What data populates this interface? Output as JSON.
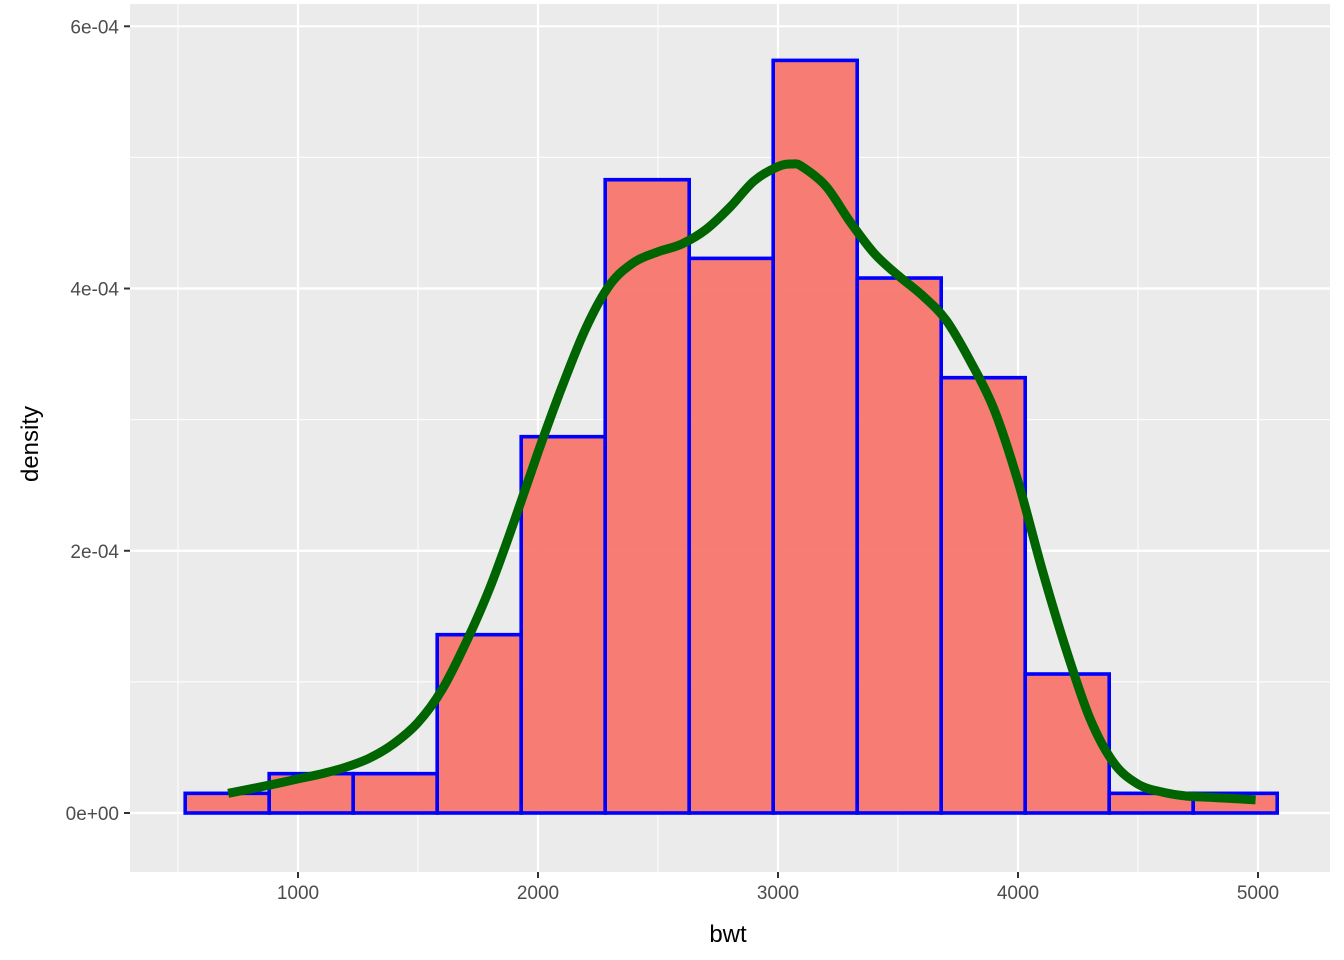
{
  "chart_data": {
    "type": "bar",
    "subtype": "histogram-with-density",
    "xlabel": "bwt",
    "ylabel": "density",
    "xlim": [
      300,
      5300
    ],
    "ylim": [
      -4.5e-05,
      0.000617
    ],
    "x_ticks": [
      {
        "value": 1000,
        "label": "1000"
      },
      {
        "value": 2000,
        "label": "2000"
      },
      {
        "value": 3000,
        "label": "3000"
      },
      {
        "value": 4000,
        "label": "4000"
      },
      {
        "value": 5000,
        "label": "5000"
      }
    ],
    "y_ticks": [
      {
        "value": 0,
        "label": "0e+00"
      },
      {
        "value": 0.0002,
        "label": "2e-04"
      },
      {
        "value": 0.0004,
        "label": "4e-04"
      },
      {
        "value": 0.0006,
        "label": "6e-04"
      }
    ],
    "grid": true,
    "legend": "none",
    "bins": [
      {
        "x0": 530,
        "x1": 880,
        "density": 1.5e-05
      },
      {
        "x0": 880,
        "x1": 1230,
        "density": 3e-05
      },
      {
        "x0": 1230,
        "x1": 1580,
        "density": 3e-05
      },
      {
        "x0": 1580,
        "x1": 1930,
        "density": 0.000136
      },
      {
        "x0": 1930,
        "x1": 2280,
        "density": 0.000287
      },
      {
        "x0": 2280,
        "x1": 2630,
        "density": 0.000483
      },
      {
        "x0": 2630,
        "x1": 2980,
        "density": 0.000423
      },
      {
        "x0": 2980,
        "x1": 3330,
        "density": 0.000574
      },
      {
        "x0": 3330,
        "x1": 3680,
        "density": 0.000408
      },
      {
        "x0": 3680,
        "x1": 4030,
        "density": 0.000332
      },
      {
        "x0": 4030,
        "x1": 4380,
        "density": 0.000106
      },
      {
        "x0": 4380,
        "x1": 4730,
        "density": 1.5e-05
      },
      {
        "x0": 4730,
        "x1": 5080,
        "density": 1.5e-05
      }
    ],
    "density_curve": {
      "x": [
        709,
        900,
        1000,
        1100,
        1200,
        1300,
        1400,
        1500,
        1600,
        1700,
        1800,
        1900,
        2000,
        2100,
        2200,
        2300,
        2400,
        2500,
        2600,
        2700,
        2800,
        2900,
        3000,
        3060,
        3100,
        3200,
        3300,
        3400,
        3500,
        3600,
        3700,
        3800,
        3900,
        4000,
        4100,
        4200,
        4300,
        4400,
        4500,
        4600,
        4700,
        4800,
        4900,
        4990
      ],
      "y": [
        1.5e-05,
        2.2e-05,
        2.6e-05,
        3e-05,
        3.5e-05,
        4.2e-05,
        5.3e-05,
        6.9e-05,
        9.4e-05,
        0.00013,
        0.000172,
        0.000222,
        0.000275,
        0.000325,
        0.00037,
        0.000403,
        0.00042,
        0.000428,
        0.000434,
        0.000445,
        0.000462,
        0.000482,
        0.000493,
        0.000495,
        0.000493,
        0.000478,
        0.000451,
        0.000427,
        0.00041,
        0.000395,
        0.000376,
        0.000345,
        0.000308,
        0.000253,
        0.000186,
        0.000125,
        7.2e-05,
        3.8e-05,
        2.2e-05,
        1.6e-05,
        1.3e-05,
        1.2e-05,
        1.1e-05,
        1e-05
      ]
    },
    "colors": {
      "panel_background": "#ebebeb",
      "grid": "#ffffff",
      "bar_fill": "#f8766d",
      "bar_outline": "#0000ff",
      "density_line": "#006400",
      "tick_text": "#4d4d4d",
      "axis_title": "#000000"
    }
  }
}
